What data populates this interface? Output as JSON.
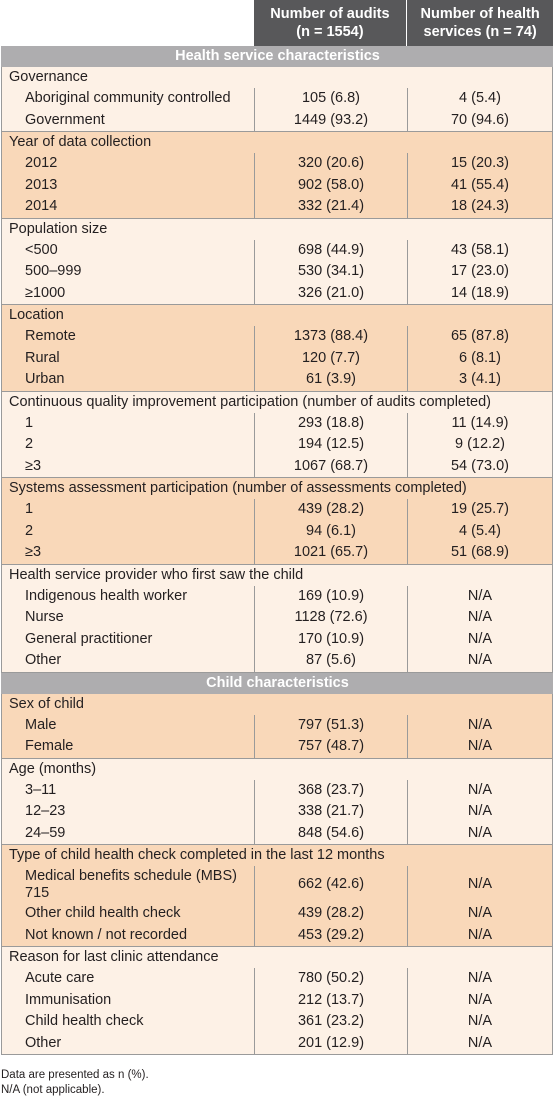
{
  "header": {
    "col1_line1": "Number of audits",
    "col1_line2": "(n = 1554)",
    "col2_line1": "Number of health",
    "col2_line2": "services (n = 74)"
  },
  "sections": [
    {
      "title": "Health service characteristics",
      "groups": [
        {
          "title": "Governance",
          "shade": "light",
          "rows": [
            {
              "label": "Aboriginal community controlled",
              "v1": "105 (6.8)",
              "v2": "4 (5.4)"
            },
            {
              "label": "Government",
              "v1": "1449 (93.2)",
              "v2": "70 (94.6)"
            }
          ]
        },
        {
          "title": "Year of data collection",
          "shade": "dark",
          "rows": [
            {
              "label": "2012",
              "v1": "320 (20.6)",
              "v2": "15 (20.3)"
            },
            {
              "label": "2013",
              "v1": "902 (58.0)",
              "v2": "41 (55.4)"
            },
            {
              "label": "2014",
              "v1": "332 (21.4)",
              "v2": "18 (24.3)"
            }
          ]
        },
        {
          "title": "Population size",
          "shade": "light",
          "rows": [
            {
              "label": "<500",
              "v1": "698 (44.9)",
              "v2": "43 (58.1)"
            },
            {
              "label": "500–999",
              "v1": "530 (34.1)",
              "v2": "17 (23.0)"
            },
            {
              "label": "≥1000",
              "v1": "326 (21.0)",
              "v2": "14 (18.9)"
            }
          ]
        },
        {
          "title": "Location",
          "shade": "dark",
          "rows": [
            {
              "label": "Remote",
              "v1": "1373 (88.4)",
              "v2": "65 (87.8)"
            },
            {
              "label": "Rural",
              "v1": "120 (7.7)",
              "v2": "6 (8.1)"
            },
            {
              "label": "Urban",
              "v1": "61 (3.9)",
              "v2": "3 (4.1)"
            }
          ]
        },
        {
          "title": "Continuous quality improvement participation (number of audits completed)",
          "shade": "light",
          "rows": [
            {
              "label": "1",
              "v1": "293 (18.8)",
              "v2": "11 (14.9)"
            },
            {
              "label": "2",
              "v1": "194 (12.5)",
              "v2": "9 (12.2)"
            },
            {
              "label": "≥3",
              "v1": "1067 (68.7)",
              "v2": "54 (73.0)"
            }
          ]
        },
        {
          "title": "Systems assessment participation (number of assessments completed)",
          "shade": "dark",
          "rows": [
            {
              "label": "1",
              "v1": "439 (28.2)",
              "v2": "19 (25.7)"
            },
            {
              "label": "2",
              "v1": "94 (6.1)",
              "v2": "4 (5.4)"
            },
            {
              "label": "≥3",
              "v1": "1021 (65.7)",
              "v2": "51 (68.9)"
            }
          ]
        },
        {
          "title": "Health service provider who first saw the child",
          "shade": "light",
          "rows": [
            {
              "label": "Indigenous health worker",
              "v1": "169 (10.9)",
              "v2": "N/A"
            },
            {
              "label": "Nurse",
              "v1": "1128 (72.6)",
              "v2": "N/A"
            },
            {
              "label": "General practitioner",
              "v1": "170 (10.9)",
              "v2": "N/A"
            },
            {
              "label": "Other",
              "v1": "87 (5.6)",
              "v2": "N/A"
            }
          ]
        }
      ]
    },
    {
      "title": "Child characteristics",
      "groups": [
        {
          "title": "Sex of child",
          "shade": "dark",
          "rows": [
            {
              "label": "Male",
              "v1": "797 (51.3)",
              "v2": "N/A"
            },
            {
              "label": "Female",
              "v1": "757 (48.7)",
              "v2": "N/A"
            }
          ]
        },
        {
          "title": "Age (months)",
          "shade": "light",
          "rows": [
            {
              "label": "3–11",
              "v1": "368 (23.7)",
              "v2": "N/A"
            },
            {
              "label": "12–23",
              "v1": "338 (21.7)",
              "v2": "N/A"
            },
            {
              "label": "24–59",
              "v1": "848 (54.6)",
              "v2": "N/A"
            }
          ]
        },
        {
          "title": "Type of child health check completed in the last 12 months",
          "shade": "dark",
          "rows": [
            {
              "label": "Medical benefits schedule (MBS) 715",
              "v1": "662 (42.6)",
              "v2": "N/A",
              "tall": true
            },
            {
              "label": "Other child health check",
              "v1": "439 (28.2)",
              "v2": "N/A"
            },
            {
              "label": "Not known / not recorded",
              "v1": "453 (29.2)",
              "v2": "N/A"
            }
          ]
        },
        {
          "title": "Reason for last clinic attendance",
          "shade": "light",
          "rows": [
            {
              "label": "Acute care",
              "v1": "780 (50.2)",
              "v2": "N/A"
            },
            {
              "label": "Immunisation",
              "v1": "212 (13.7)",
              "v2": "N/A"
            },
            {
              "label": "Child health check",
              "v1": "361 (23.2)",
              "v2": "N/A"
            },
            {
              "label": "Other",
              "v1": "201 (12.9)",
              "v2": "N/A"
            }
          ]
        }
      ]
    }
  ],
  "notes": [
    "Data are presented as n (%).",
    "N/A (not applicable)."
  ]
}
